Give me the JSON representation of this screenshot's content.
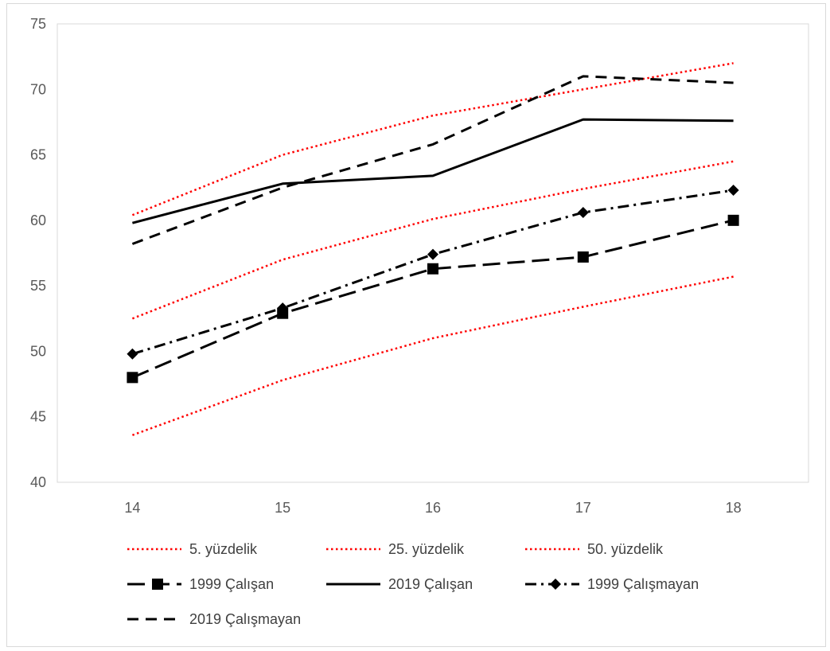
{
  "chart_data": {
    "type": "line",
    "title": "",
    "xlabel": "",
    "ylabel": "",
    "x": [
      14,
      15,
      16,
      17,
      18
    ],
    "x_tick_labels": [
      "14",
      "15",
      "16",
      "17",
      "18"
    ],
    "ylim": [
      40,
      75
    ],
    "y_ticks": [
      40,
      45,
      50,
      55,
      60,
      65,
      70,
      75
    ],
    "y_tick_labels": [
      "40",
      "45",
      "50",
      "55",
      "60",
      "65",
      "70",
      "75"
    ],
    "grid": false,
    "legend_position": "bottom",
    "series": [
      {
        "name": "5. yüzdelik",
        "values": [
          43.6,
          47.8,
          51.0,
          53.4,
          55.7
        ],
        "color": "#ff0000",
        "style": "dotted",
        "marker": "none"
      },
      {
        "name": "25. yüzdelik",
        "values": [
          52.5,
          57.0,
          60.1,
          62.4,
          64.5
        ],
        "color": "#ff0000",
        "style": "dotted",
        "marker": "none"
      },
      {
        "name": "50. yüzdelik",
        "values": [
          60.4,
          65.0,
          68.0,
          70.0,
          72.0
        ],
        "color": "#ff0000",
        "style": "dotted",
        "marker": "none"
      },
      {
        "name": "1999 Çalışan",
        "values": [
          48.0,
          52.9,
          56.3,
          57.2,
          60.0
        ],
        "color": "#000000",
        "style": "longdash",
        "marker": "square"
      },
      {
        "name": "2019 Çalışan",
        "values": [
          59.8,
          62.8,
          63.4,
          67.7,
          67.6
        ],
        "color": "#000000",
        "style": "solid",
        "marker": "none"
      },
      {
        "name": "1999 Çalışmayan",
        "values": [
          49.8,
          53.3,
          57.4,
          60.6,
          62.3
        ],
        "color": "#000000",
        "style": "dashdot",
        "marker": "diamond"
      },
      {
        "name": "2019 Çalışmayan",
        "values": [
          58.2,
          62.5,
          65.8,
          71.0,
          70.5
        ],
        "color": "#000000",
        "style": "dashed",
        "marker": "none"
      }
    ]
  }
}
